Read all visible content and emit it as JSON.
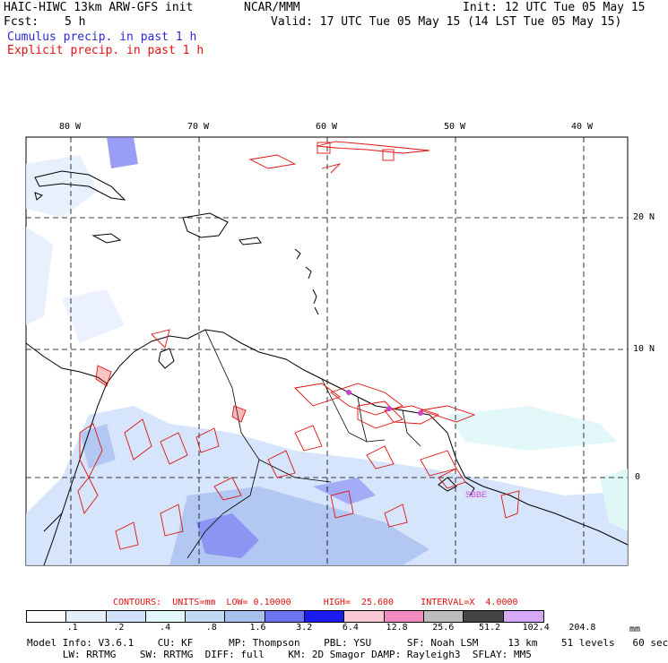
{
  "header": {
    "model_title": "HAIC-HIWC 13km ARW-GFS init",
    "org": "NCAR/MMM",
    "init": "Init: 12 UTC Tue 05 May 15",
    "fcst_label": "Fcst:",
    "fcst_value": "5 h",
    "valid": "Valid: 17 UTC Tue 05 May 15 (14 LST Tue 05 May 15)",
    "legend_cumulus": "Cumulus precip. in past 1 h",
    "legend_explicit": "Explicit precip. in past 1 h"
  },
  "map": {
    "lon_labels": [
      "80 W",
      "70 W",
      "60 W",
      "50 W",
      "40 W"
    ],
    "lat_labels": [
      "20 N",
      "10 N",
      "0"
    ],
    "station_labels": [
      "SBBE"
    ]
  },
  "contours_line": "CONTOURS:  UNITS=mm  LOW= 0.10000      HIGH=  25.600     INTERVAL=X  4.0000",
  "colorbar": {
    "levels": [
      ".1",
      ".2",
      ".4",
      ".8",
      "1.6",
      "3.2",
      "6.4",
      "12.8",
      "25.6",
      "51.2",
      "102.4",
      "204.8"
    ],
    "colors": [
      "#ffffff",
      "#e6eefc",
      "#cfe0fa",
      "#dff7f7",
      "#c2d8f2",
      "#a9c1f0",
      "#6f74f2",
      "#1c1cf0",
      "#f8c8d3",
      "#f28ac0",
      "#bcbcbc",
      "#444444",
      "#d7a8f5"
    ],
    "units": "mm"
  },
  "model_info": {
    "line1": "Model Info: V3.6.1    CU: KF      MP: Thompson    PBL: YSU      SF: Noah LSM     13 km    51 levels   60 sec",
    "line2": "      LW: RRTMG    SW: RRTMG  DIFF: full    KM: 2D Smagor DAMP: Rayleigh3  SFLAY: MM5"
  }
}
